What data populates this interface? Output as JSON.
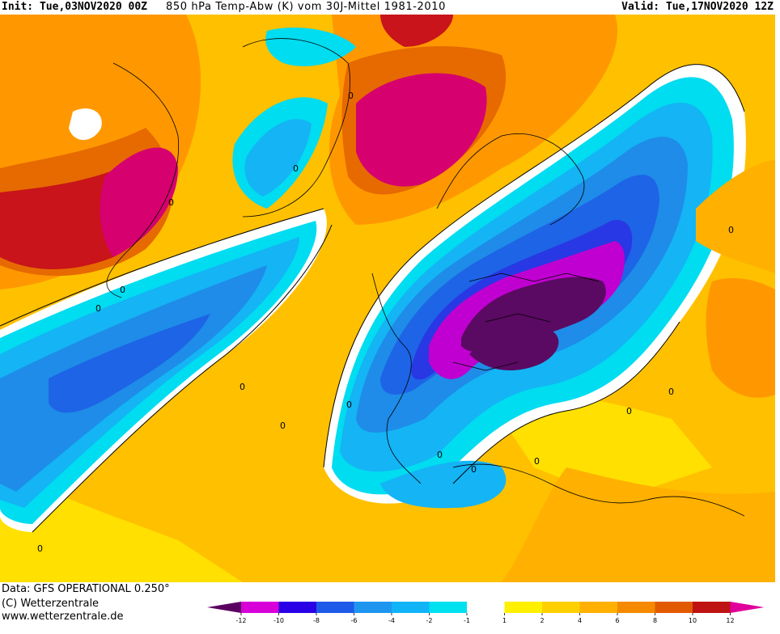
{
  "header": {
    "init": "Init: Tue,03NOV2020 00Z",
    "parameter": "850 hPa Temp-Abw (K) vom 30J-Mittel 1981-2010",
    "valid": "Valid: Tue,17NOV2020 12Z"
  },
  "footer": {
    "data_source": "Data: GFS OPERATIONAL 0.250°",
    "copyright": "(C) Wetterzentrale",
    "url": "www.wetterzentrale.de"
  },
  "legend": {
    "ticks": [
      "-12",
      "-10",
      "-8",
      "-6",
      "-4",
      "-2",
      "-1",
      "1",
      "2",
      "4",
      "6",
      "8",
      "10",
      "12"
    ],
    "bins": [
      {
        "color": "#d800d8"
      },
      {
        "color": "#2a00e6"
      },
      {
        "color": "#1e5ae8"
      },
      {
        "color": "#1e96f0"
      },
      {
        "color": "#12b4f8"
      },
      {
        "color": "#00e1f0"
      },
      {
        "color": "#ffffff"
      },
      {
        "color": "#fff000"
      },
      {
        "color": "#ffd000"
      },
      {
        "color": "#ffb000"
      },
      {
        "color": "#f58a00"
      },
      {
        "color": "#e25a00"
      },
      {
        "color": "#bf1212"
      }
    ],
    "low_end_color": "#5a0060",
    "high_end_color": "#e0009a"
  },
  "map": {
    "contour_labels": [
      "0",
      "0",
      "0",
      "0",
      "0",
      "0",
      "0",
      "0",
      "0",
      "0",
      "0",
      "0",
      "0",
      "0",
      "0"
    ],
    "colors": {
      "base": "#ffc000",
      "yellow": "#ffe000",
      "orange": "#ff9800",
      "dark_orange": "#e66a00",
      "red": "#c8141a",
      "magenta_red": "#d6006e",
      "white": "#ffffff",
      "cyan": "#00dcf0",
      "light_blue": "#14b4f5",
      "blue": "#1e8ce8",
      "mid_blue": "#1e64e6",
      "deep_blue": "#2838e4",
      "purple": "#c000d0",
      "dark_purple": "#5a0a62"
    }
  }
}
